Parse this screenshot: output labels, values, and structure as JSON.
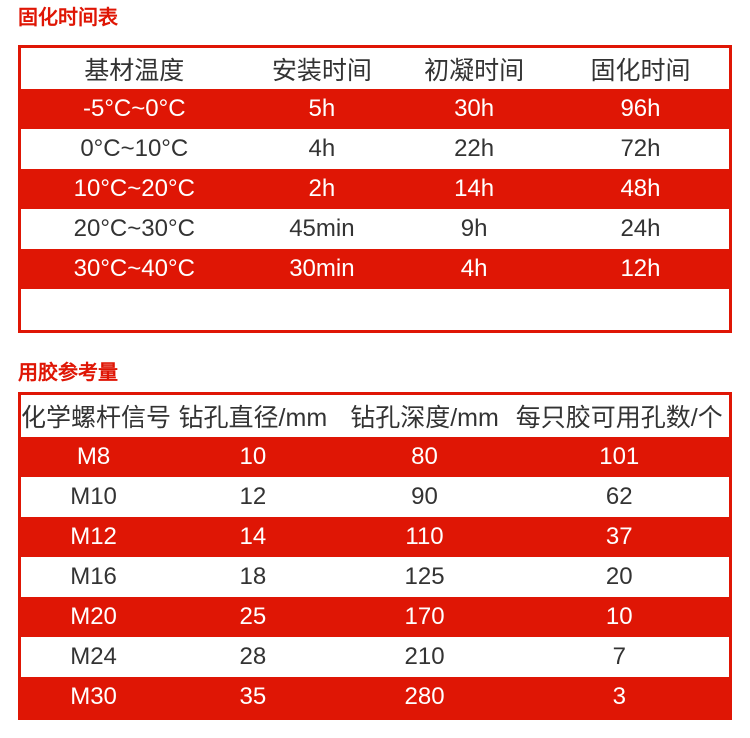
{
  "page": {
    "background": "#ffffff",
    "accent_red": "#df1605",
    "text_dark": "#333333",
    "text_light": "#ffffff"
  },
  "curing_table": {
    "title": "固化时间表",
    "headers": [
      "基材温度",
      "安装时间",
      "初凝时间",
      "固化时间"
    ],
    "rows": [
      [
        "-5°C~0°C",
        "5h",
        "30h",
        "96h"
      ],
      [
        "0°C~10°C",
        "4h",
        "22h",
        "72h"
      ],
      [
        "10°C~20°C",
        "2h",
        "14h",
        "48h"
      ],
      [
        "20°C~30°C",
        "45min",
        "9h",
        "24h"
      ],
      [
        "30°C~40°C",
        "30min",
        "4h",
        "12h"
      ]
    ]
  },
  "glue_table": {
    "title": "用胶参考量",
    "headers": [
      "化学螺杆信号",
      "钻孔直径/mm",
      "钻孔深度/mm",
      "每只胶可用孔数/个"
    ],
    "rows": [
      [
        "M8",
        "10",
        "80",
        "101"
      ],
      [
        "M10",
        "12",
        "90",
        "62"
      ],
      [
        "M12",
        "14",
        "110",
        "37"
      ],
      [
        "M16",
        "18",
        "125",
        "20"
      ],
      [
        "M20",
        "25",
        "170",
        "10"
      ],
      [
        "M24",
        "28",
        "210",
        "7"
      ],
      [
        "M30",
        "35",
        "280",
        "3"
      ]
    ]
  }
}
